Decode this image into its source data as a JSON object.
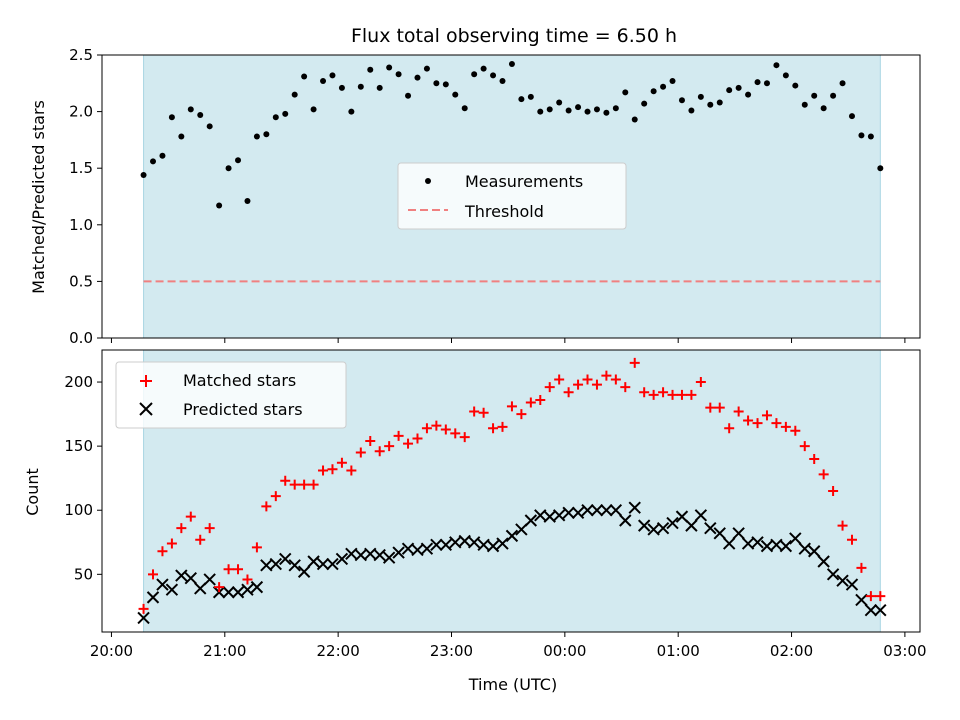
{
  "title": "Flux total observing time = 6.50 h",
  "chart_data": [
    {
      "type": "scatter",
      "panel": "top",
      "ylabel": "Matched/Predicted stars",
      "ylim": [
        0,
        2.5
      ],
      "yticks": [
        "0.0",
        "0.5",
        "1.0",
        "1.5",
        "2.0",
        "2.5"
      ],
      "threshold": 0.5,
      "shaded_span": [
        "20:17",
        "02:47"
      ],
      "shade_color": "#d3eaf0",
      "legend": {
        "placement": "center",
        "entries": [
          "Measurements",
          "Threshold"
        ]
      },
      "series": [
        {
          "name": "Measurements",
          "color": "#000000",
          "marker": "dot",
          "x": [
            "20:17",
            "20:22",
            "20:27",
            "20:32",
            "20:37",
            "20:42",
            "20:47",
            "20:52",
            "20:57",
            "21:02",
            "21:07",
            "21:12",
            "21:17",
            "21:22",
            "21:27",
            "21:32",
            "21:37",
            "21:42",
            "21:47",
            "21:52",
            "21:57",
            "22:02",
            "22:07",
            "22:12",
            "22:17",
            "22:22",
            "22:27",
            "22:32",
            "22:37",
            "22:42",
            "22:47",
            "22:52",
            "22:57",
            "23:02",
            "23:07",
            "23:12",
            "23:17",
            "23:22",
            "23:27",
            "23:32",
            "23:37",
            "23:42",
            "23:47",
            "23:52",
            "23:57",
            "00:02",
            "00:07",
            "00:12",
            "00:17",
            "00:22",
            "00:27",
            "00:32",
            "00:37",
            "00:42",
            "00:47",
            "00:52",
            "00:57",
            "01:02",
            "01:07",
            "01:12",
            "01:17",
            "01:22",
            "01:27",
            "01:32",
            "01:37",
            "01:42",
            "01:47",
            "01:52",
            "01:57",
            "02:02",
            "02:07",
            "02:12",
            "02:17",
            "02:22",
            "02:27",
            "02:32",
            "02:37",
            "02:42",
            "02:47"
          ],
          "y": [
            1.44,
            1.56,
            1.61,
            1.95,
            1.78,
            2.02,
            1.97,
            1.87,
            1.17,
            1.5,
            1.57,
            1.21,
            1.78,
            1.8,
            1.95,
            1.98,
            2.15,
            2.31,
            2.02,
            2.27,
            2.32,
            2.21,
            2.0,
            2.22,
            2.37,
            2.21,
            2.39,
            2.33,
            2.14,
            2.3,
            2.38,
            2.25,
            2.24,
            2.15,
            2.03,
            2.33,
            2.38,
            2.32,
            2.27,
            2.42,
            2.11,
            2.13,
            2.0,
            2.02,
            2.08,
            2.01,
            2.04,
            2.0,
            2.02,
            1.99,
            2.03,
            2.17,
            1.93,
            2.07,
            2.18,
            2.22,
            2.27,
            2.1,
            2.01,
            2.13,
            2.06,
            2.08,
            2.19,
            2.21,
            2.15,
            2.26,
            2.25,
            2.41,
            2.32,
            2.23,
            2.06,
            2.14,
            2.03,
            2.14,
            2.25,
            1.96,
            1.79,
            1.78,
            1.5
          ]
        },
        {
          "name": "Threshold",
          "color": "#f08080",
          "style": "dashed"
        }
      ]
    },
    {
      "type": "scatter",
      "panel": "bottom",
      "xlabel": "Time (UTC)",
      "ylabel": "Count",
      "ylim": [
        5,
        225
      ],
      "yticks": [
        "50",
        "100",
        "150",
        "200"
      ],
      "xlim": [
        "19:55",
        "03:08"
      ],
      "xticks": [
        "20:00",
        "21:00",
        "22:00",
        "23:00",
        "00:00",
        "01:00",
        "02:00",
        "03:00"
      ],
      "shaded_span": [
        "20:17",
        "02:47"
      ],
      "shade_color": "#d3eaf0",
      "legend": {
        "placement": "upper-left",
        "entries": [
          "Matched stars",
          "Predicted stars"
        ]
      },
      "series": [
        {
          "name": "Matched stars",
          "color": "#ff0000",
          "marker": "plus",
          "x": [
            "20:17",
            "20:22",
            "20:27",
            "20:32",
            "20:37",
            "20:42",
            "20:47",
            "20:52",
            "20:57",
            "21:02",
            "21:07",
            "21:12",
            "21:17",
            "21:22",
            "21:27",
            "21:32",
            "21:37",
            "21:42",
            "21:47",
            "21:52",
            "21:57",
            "22:02",
            "22:07",
            "22:12",
            "22:17",
            "22:22",
            "22:27",
            "22:32",
            "22:37",
            "22:42",
            "22:47",
            "22:52",
            "22:57",
            "23:02",
            "23:07",
            "23:12",
            "23:17",
            "23:22",
            "23:27",
            "23:32",
            "23:37",
            "23:42",
            "23:47",
            "23:52",
            "23:57",
            "00:02",
            "00:07",
            "00:12",
            "00:17",
            "00:22",
            "00:27",
            "00:32",
            "00:37",
            "00:42",
            "00:47",
            "00:52",
            "00:57",
            "01:02",
            "01:07",
            "01:12",
            "01:17",
            "01:22",
            "01:27",
            "01:32",
            "01:37",
            "01:42",
            "01:47",
            "01:52",
            "01:57",
            "02:02",
            "02:07",
            "02:12",
            "02:17",
            "02:22",
            "02:27",
            "02:32",
            "02:37",
            "02:42",
            "02:47"
          ],
          "y": [
            23,
            50,
            68,
            74,
            86,
            95,
            77,
            86,
            40,
            54,
            54,
            46,
            71,
            103,
            111,
            123,
            120,
            120,
            120,
            131,
            132,
            137,
            131,
            145,
            154,
            146,
            150,
            158,
            152,
            156,
            164,
            166,
            163,
            160,
            157,
            177,
            176,
            164,
            165,
            181,
            175,
            184,
            186,
            196,
            202,
            192,
            198,
            202,
            198,
            205,
            202,
            196,
            215,
            192,
            190,
            192,
            190,
            190,
            190,
            200,
            180,
            180,
            164,
            177,
            170,
            168,
            174,
            168,
            165,
            162,
            150,
            140,
            128,
            115,
            88,
            77,
            55,
            33,
            33
          ]
        },
        {
          "name": "Predicted stars",
          "color": "#000000",
          "marker": "x",
          "x": [
            "20:17",
            "20:22",
            "20:27",
            "20:32",
            "20:37",
            "20:42",
            "20:47",
            "20:52",
            "20:57",
            "21:02",
            "21:07",
            "21:12",
            "21:17",
            "21:22",
            "21:27",
            "21:32",
            "21:37",
            "21:42",
            "21:47",
            "21:52",
            "21:57",
            "22:02",
            "22:07",
            "22:12",
            "22:17",
            "22:22",
            "22:27",
            "22:32",
            "22:37",
            "22:42",
            "22:47",
            "22:52",
            "22:57",
            "23:02",
            "23:07",
            "23:12",
            "23:17",
            "23:22",
            "23:27",
            "23:32",
            "23:37",
            "23:42",
            "23:47",
            "23:52",
            "23:57",
            "00:02",
            "00:07",
            "00:12",
            "00:17",
            "00:22",
            "00:27",
            "00:32",
            "00:37",
            "00:42",
            "00:47",
            "00:52",
            "00:57",
            "01:02",
            "01:07",
            "01:12",
            "01:17",
            "01:22",
            "01:27",
            "01:32",
            "01:37",
            "01:42",
            "01:47",
            "01:52",
            "01:57",
            "02:02",
            "02:07",
            "02:12",
            "02:17",
            "02:22",
            "02:27",
            "02:32",
            "02:37",
            "02:42",
            "02:47"
          ],
          "y": [
            16,
            32,
            42,
            38,
            49,
            47,
            39,
            46,
            36,
            36,
            36,
            38,
            40,
            57,
            58,
            62,
            57,
            52,
            60,
            58,
            58,
            62,
            66,
            65,
            66,
            65,
            63,
            67,
            70,
            69,
            70,
            73,
            73,
            75,
            76,
            75,
            73,
            72,
            74,
            80,
            85,
            92,
            96,
            95,
            96,
            98,
            98,
            100,
            100,
            100,
            100,
            92,
            102,
            88,
            85,
            86,
            90,
            95,
            88,
            96,
            86,
            82,
            74,
            82,
            74,
            75,
            72,
            73,
            72,
            78,
            70,
            68,
            60,
            50,
            45,
            42,
            30,
            22,
            22
          ]
        }
      ]
    }
  ]
}
